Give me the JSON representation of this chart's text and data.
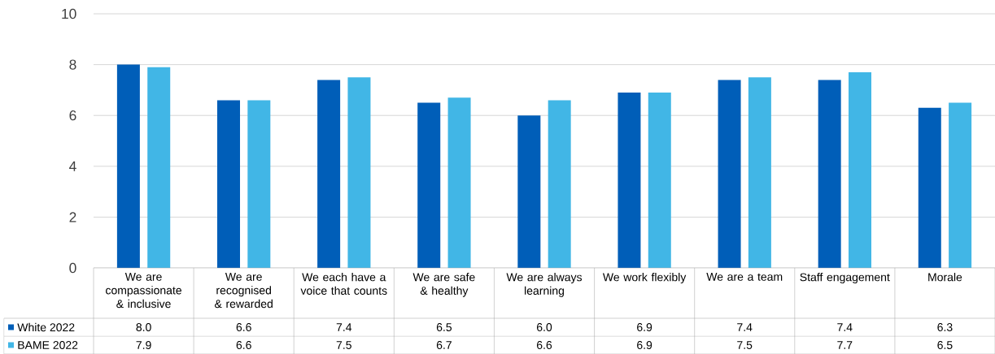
{
  "chart_data": {
    "type": "bar",
    "categories": [
      "We are compassionate & inclusive",
      "We are recognised & rewarded",
      "We each have a voice that counts",
      "We are safe & healthy",
      "We are always learning",
      "We work flexibly",
      "We are a team",
      "Staff engagement",
      "Morale"
    ],
    "series": [
      {
        "name": "White 2022",
        "color": "#005eb8",
        "values": [
          8.0,
          6.6,
          7.4,
          6.5,
          6.0,
          6.9,
          7.4,
          7.4,
          6.3
        ],
        "value_labels": [
          "8.0",
          "6.6",
          "7.4",
          "6.5",
          "6.0",
          "6.9",
          "7.4",
          "7.4",
          "6.3"
        ]
      },
      {
        "name": "BAME 2022",
        "color": "#41b6e6",
        "values": [
          7.9,
          6.6,
          7.5,
          6.7,
          6.6,
          6.9,
          7.5,
          7.7,
          6.5
        ],
        "value_labels": [
          "7.9",
          "6.6",
          "7.5",
          "6.7",
          "6.6",
          "6.9",
          "7.5",
          "7.7",
          "6.5"
        ]
      }
    ],
    "ylim": [
      0,
      10
    ],
    "yticks": [
      0,
      2,
      4,
      6,
      8,
      10
    ],
    "grid": "y",
    "legend": "bottom"
  }
}
